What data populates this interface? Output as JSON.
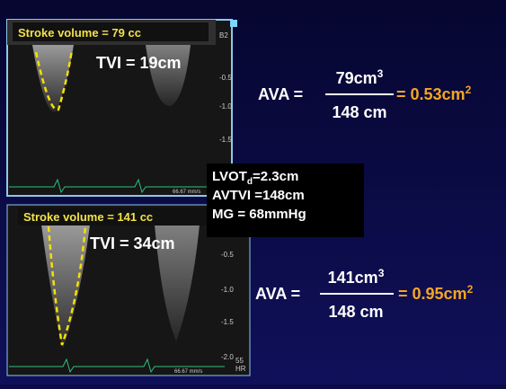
{
  "top_panel": {
    "label": "Stroke volume = 79 cc",
    "tvi": "TVI = 19cm",
    "scale_top": "B2",
    "scale_ticks": [
      "-0.5",
      "-1.0",
      "-1.5"
    ],
    "speed": "66.67 mm/s"
  },
  "top_formula": {
    "lhs": "AVA =",
    "numerator": "79cm",
    "numerator_sup": "3",
    "denominator": "148 cm",
    "result": "= 0.53cm",
    "result_sup": "2"
  },
  "measurements": {
    "lvot": "LVOT",
    "lvot_sub": "d",
    "lvot_value": "=2.3cm",
    "avtvi": "AVTVI =148cm",
    "mg": "MG = 68mmHg"
  },
  "bottom_panel": {
    "label": "Stroke volume = 141 cc",
    "tvi": "TVI = 34cm",
    "scale_ticks": [
      "-0.5",
      "-1.0",
      "-1.5",
      "-2.0"
    ],
    "speed": "66.67 mm/s",
    "hr_value": "55",
    "hr_label": "HR"
  },
  "bottom_formula": {
    "lhs": "AVA =",
    "numerator": "141cm",
    "numerator_sup": "3",
    "denominator": "148 cm",
    "result": "= 0.95cm",
    "result_sup": "2"
  }
}
